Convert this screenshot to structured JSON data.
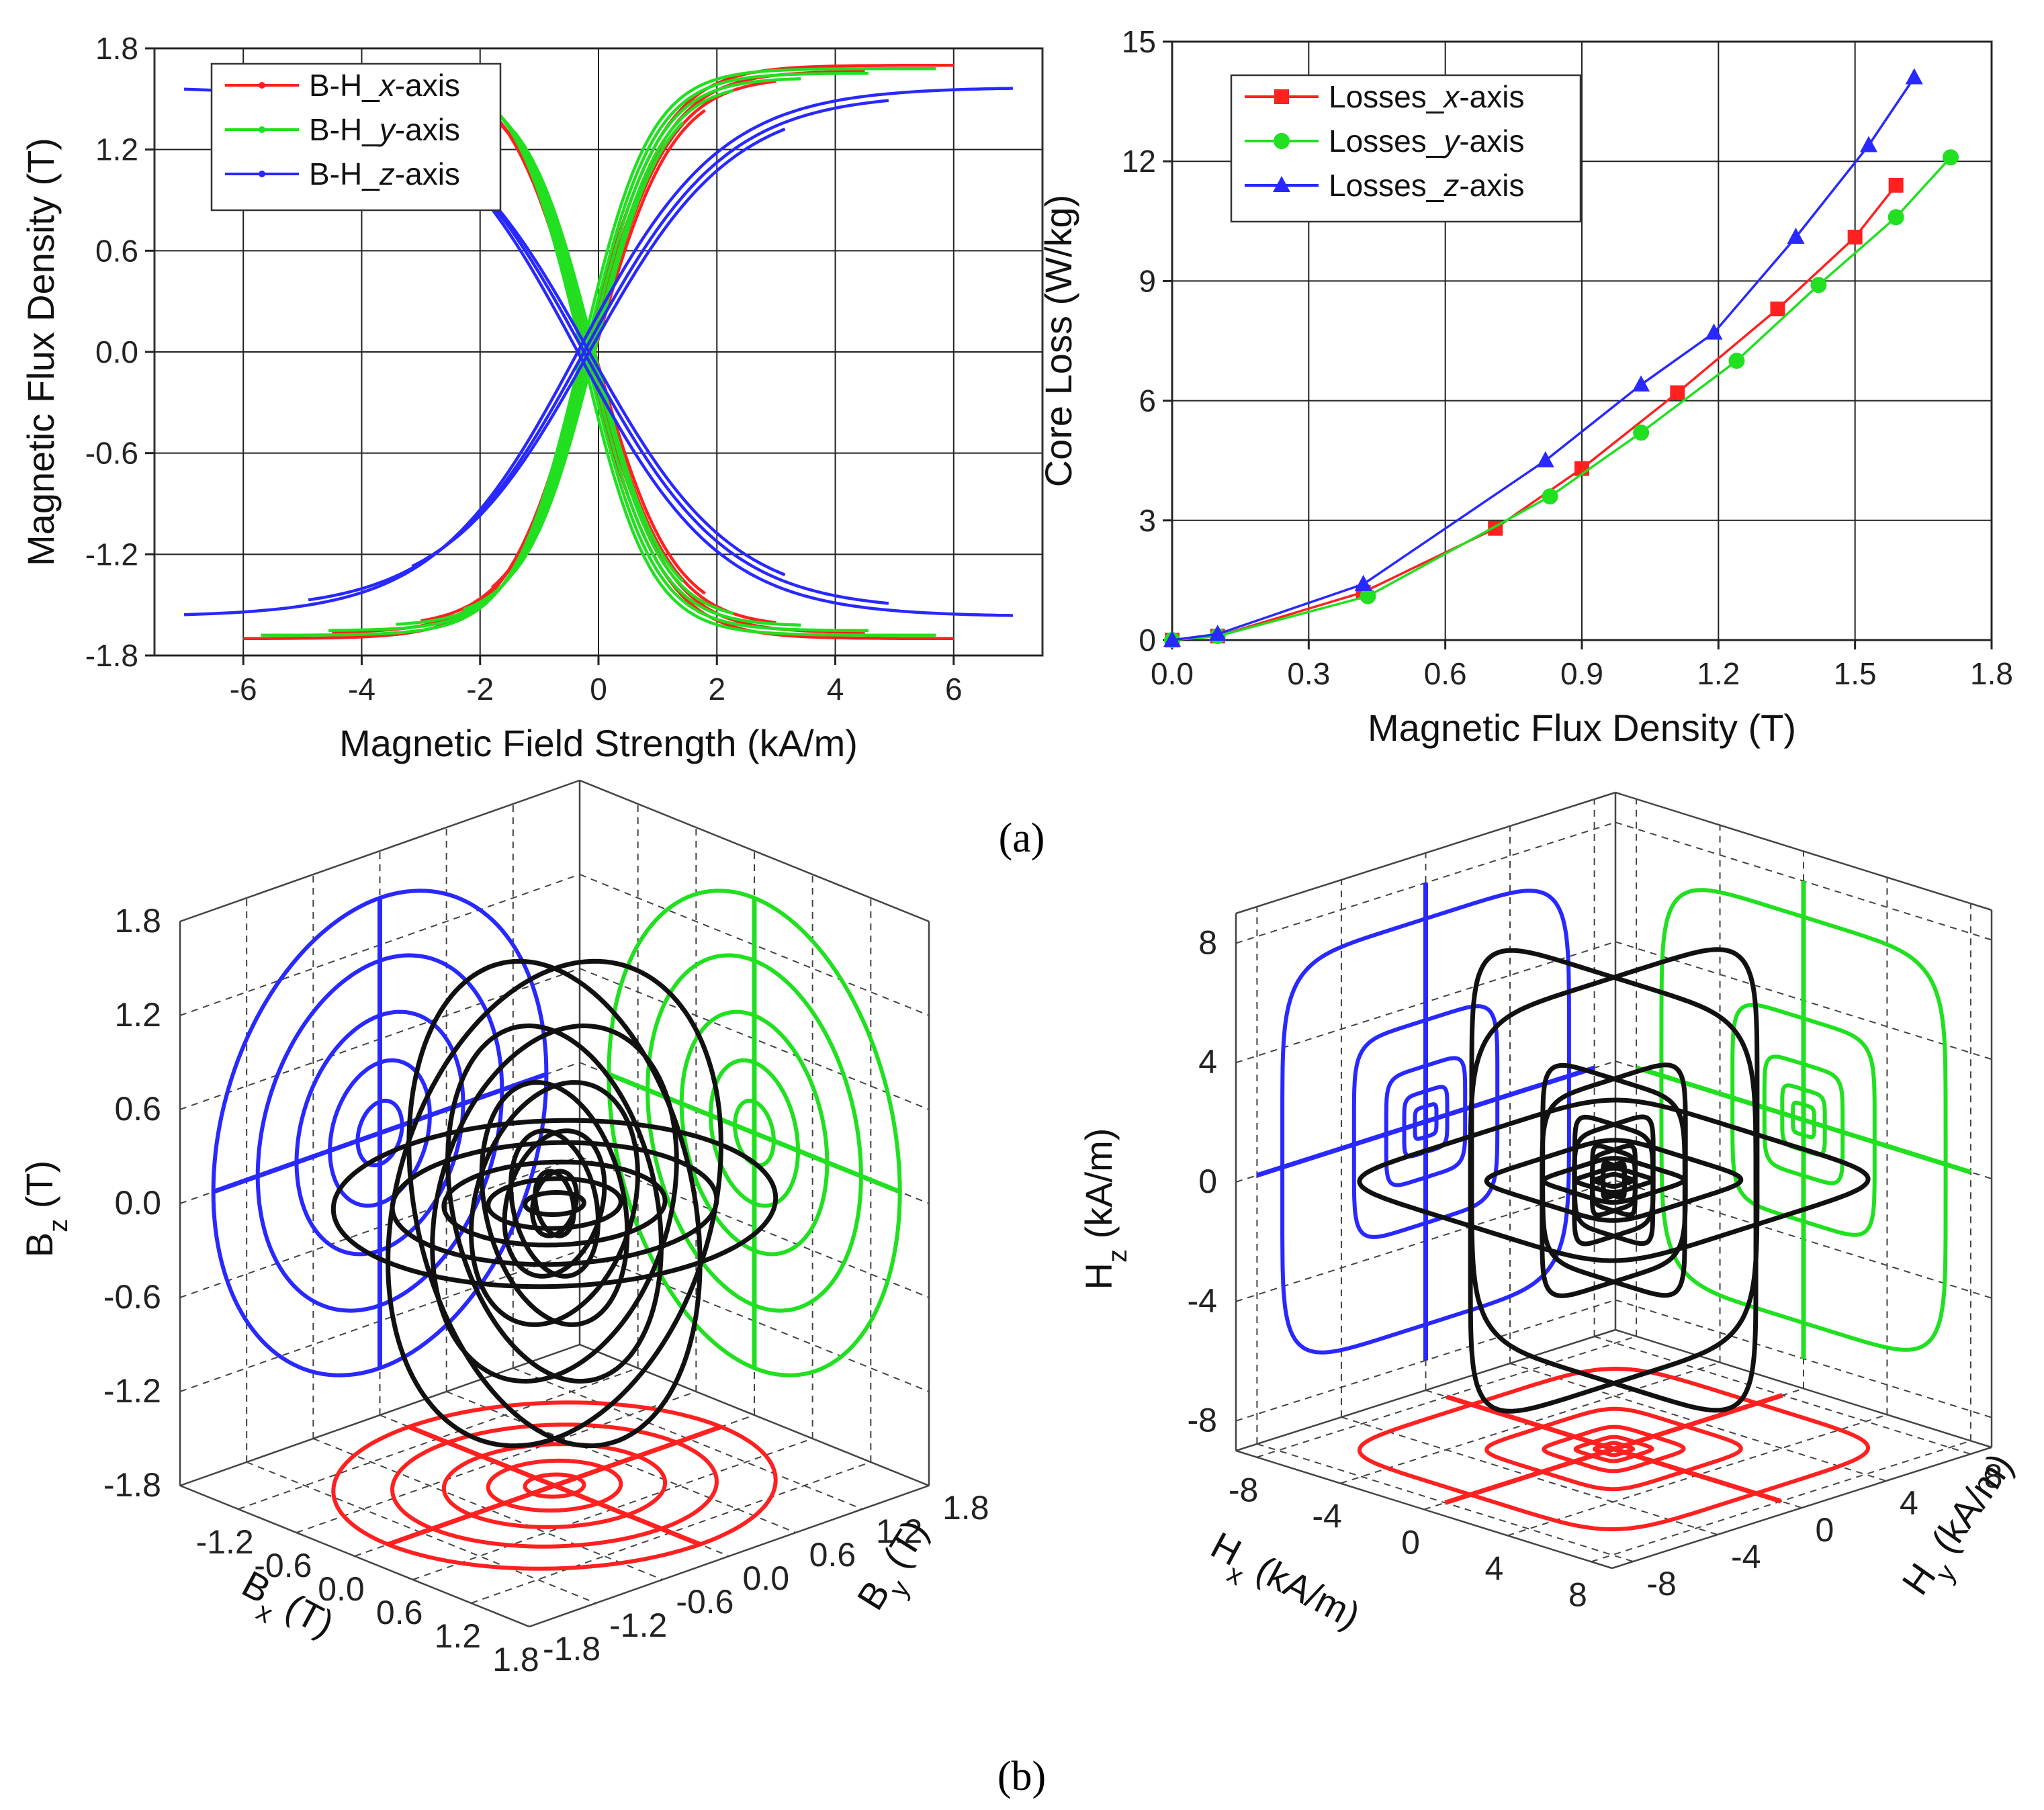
{
  "caption_a": "(a)",
  "caption_b": "(b)",
  "colors": {
    "x": "#ff2020",
    "y": "#20e020",
    "z": "#2828ff",
    "traj": "#111111"
  },
  "chart_data": [
    {
      "type": "line",
      "title": "",
      "xlabel": "Magnetic Field Strength (kA/m)",
      "ylabel": "Magnetic Flux Density (T)",
      "xlim": [
        -7.5,
        7.5
      ],
      "ylim": [
        -1.8,
        1.8
      ],
      "xticks": [
        "-6",
        "-4",
        "-2",
        "0",
        "2",
        "4",
        "6"
      ],
      "yticks": [
        "-1.8",
        "-1.2",
        "-0.6",
        "0.0",
        "0.6",
        "1.2",
        "1.8"
      ],
      "grid": true,
      "legend_position": "top-left",
      "series": [
        {
          "name": "B-H_x-axis",
          "name_prefix": "B-H_",
          "name_axis": "x",
          "name_suffix": "-axis",
          "color": "#ff2020",
          "hmax": 6.0,
          "bmax": 1.7,
          "coercive": 0.22,
          "h0": 1.3,
          "loops": [
            1.0,
            0.75,
            0.5,
            0.3
          ]
        },
        {
          "name": "B-H_y-axis",
          "name_prefix": "B-H_",
          "name_axis": "y",
          "name_suffix": "-axis",
          "color": "#20e020",
          "hmax": 5.7,
          "bmax": 1.68,
          "coercive": 0.28,
          "h0": 1.15,
          "loops": [
            1.0,
            0.8,
            0.6,
            0.4,
            0.25
          ]
        },
        {
          "name": "B-H_z-axis",
          "name_prefix": "B-H_",
          "name_axis": "z",
          "name_suffix": "-axis",
          "color": "#2828ff",
          "hmax": 7.0,
          "bmax": 1.57,
          "coercive": 0.35,
          "h0": 2.4,
          "loops": [
            1.0,
            0.7,
            0.45
          ]
        }
      ]
    },
    {
      "type": "line",
      "title": "",
      "xlabel": "Magnetic Flux Density (T)",
      "ylabel": "Core Loss (W/kg)",
      "xlim": [
        0,
        1.8
      ],
      "ylim": [
        0,
        15
      ],
      "xticks": [
        "0.0",
        "0.3",
        "0.6",
        "0.9",
        "1.2",
        "1.5",
        "1.8"
      ],
      "yticks": [
        "0",
        "3",
        "6",
        "9",
        "12",
        "15"
      ],
      "grid": true,
      "legend_position": "top-left",
      "series": [
        {
          "name": "Losses_x-axis",
          "name_prefix": "Losses_",
          "name_axis": "x",
          "name_suffix": "-axis",
          "color": "#ff2020",
          "marker": "square",
          "x": [
            0.0,
            0.1,
            0.42,
            0.71,
            0.9,
            1.11,
            1.33,
            1.5,
            1.59
          ],
          "y": [
            0.0,
            0.1,
            1.2,
            2.8,
            4.3,
            6.2,
            8.3,
            10.1,
            11.4
          ]
        },
        {
          "name": "Losses_y-axis",
          "name_prefix": "Losses_",
          "name_axis": "y",
          "name_suffix": "-axis",
          "color": "#20e020",
          "marker": "circle",
          "x": [
            0.0,
            0.1,
            0.43,
            0.83,
            1.03,
            1.24,
            1.42,
            1.59,
            1.71
          ],
          "y": [
            0.0,
            0.1,
            1.1,
            3.6,
            5.2,
            7.0,
            8.9,
            10.6,
            12.1
          ]
        },
        {
          "name": "Losses_z-axis",
          "name_prefix": "Losses_",
          "name_axis": "z",
          "name_suffix": "-axis",
          "color": "#2828ff",
          "marker": "triangle",
          "x": [
            0.0,
            0.1,
            0.42,
            0.82,
            1.03,
            1.19,
            1.37,
            1.53,
            1.63
          ],
          "y": [
            0.0,
            0.15,
            1.4,
            4.5,
            6.4,
            7.7,
            10.1,
            12.4,
            14.1
          ]
        }
      ]
    },
    {
      "type": "scatter",
      "title": "",
      "xlabel_main": "B",
      "xlabel_sub": "x",
      "xlabel_unit": " (T)",
      "ylabel_main": "B",
      "ylabel_sub": "y",
      "ylabel_unit": " (T)",
      "zlabel_main": "B",
      "zlabel_sub": "z",
      "zlabel_unit": " (T)",
      "xticks": [
        "-1.2",
        "-0.6",
        "0.0",
        "0.6",
        "1.2",
        "1.8"
      ],
      "yticks": [
        "-1.8",
        "-1.2",
        "-0.6",
        "0.0",
        "0.6",
        "1.2",
        "1.8"
      ],
      "zticks": [
        "-1.8",
        "-1.2",
        "-0.6",
        "0.0",
        "0.6",
        "1.2",
        "1.8"
      ],
      "lim": [
        -1.8,
        1.8
      ],
      "projection_radii": [
        1.5,
        1.1,
        0.75,
        0.45,
        0.2
      ],
      "trajectory_radii": [
        1.5,
        1.1,
        0.75,
        0.45,
        0.2
      ]
    },
    {
      "type": "scatter",
      "title": "",
      "xlabel_main": "H",
      "xlabel_sub": "x",
      "xlabel_unit": " (kA/m)",
      "ylabel_main": "H",
      "ylabel_sub": "y",
      "ylabel_unit": " (kA/m)",
      "zlabel_main": "H",
      "zlabel_sub": "z",
      "zlabel_unit": " (kA/m)",
      "xticks": [
        "-8",
        "-4",
        "0",
        "4",
        "8"
      ],
      "yticks": [
        "-8",
        "-4",
        "0",
        "4",
        "8"
      ],
      "zticks": [
        "-8",
        "-4",
        "0",
        "4",
        "8"
      ],
      "lim": [
        -9,
        9
      ],
      "projection_radii": [
        8.0,
        4.0,
        2.2,
        1.2,
        0.6
      ],
      "trajectory_radii": [
        8.0,
        4.0,
        2.2,
        1.2,
        0.6
      ]
    }
  ]
}
